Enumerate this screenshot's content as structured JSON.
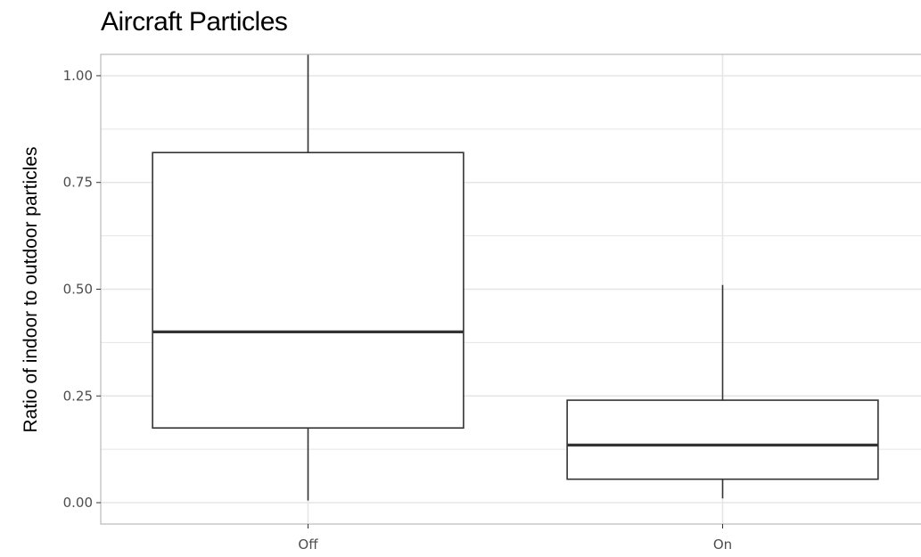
{
  "chart_data": {
    "type": "box",
    "title": "Aircraft Particles",
    "xlabel": "",
    "ylabel": "Ratio of indoor to outdoor particles",
    "ylim": [
      -0.05,
      1.05
    ],
    "y_ticks": [
      0.0,
      0.25,
      0.5,
      0.75,
      1.0
    ],
    "y_tick_labels": [
      "0.00",
      "0.25",
      "0.50",
      "0.75",
      "1.00"
    ],
    "categories": [
      "Off",
      "On"
    ],
    "boxes": [
      {
        "category": "Off",
        "min": 0.005,
        "q1": 0.175,
        "median": 0.4,
        "q3": 0.82,
        "max": 1.05
      },
      {
        "category": "On",
        "min": 0.01,
        "q1": 0.055,
        "median": 0.135,
        "q3": 0.24,
        "max": 0.51
      }
    ],
    "grid": true,
    "colors": {
      "panel_border": "#b3b3b3",
      "grid": "#e5e5e5",
      "box_stroke": "#333333",
      "box_fill": "#ffffff"
    }
  }
}
